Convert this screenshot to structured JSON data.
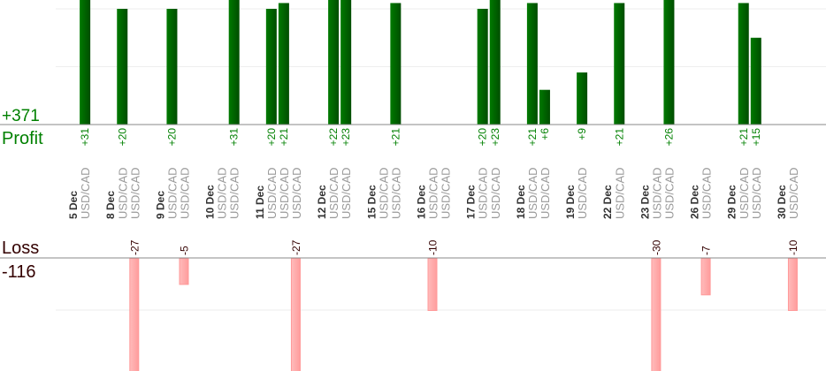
{
  "chart_data": {
    "type": "bar",
    "profit_panel": {
      "label": "Profit",
      "total": "+371",
      "color": "#006600",
      "label_color": "#008000"
    },
    "loss_panel": {
      "label": "Loss",
      "total": "-116",
      "color": "#ffaaaa",
      "label_color": "#330000"
    },
    "symbol": "USD/CAD",
    "days": [
      {
        "date": "5 Dec",
        "trades": [
          31
        ]
      },
      {
        "date": "8 Dec",
        "trades": [
          20,
          -27
        ]
      },
      {
        "date": "9 Dec",
        "trades": [
          20,
          -5
        ]
      },
      {
        "date": "10 Dec",
        "trades": [
          0,
          31
        ]
      },
      {
        "date": "11 Dec",
        "trades": [
          20,
          21,
          -27
        ]
      },
      {
        "date": "12 Dec",
        "trades": [
          22,
          23
        ]
      },
      {
        "date": "15 Dec",
        "trades": [
          0,
          21
        ]
      },
      {
        "date": "16 Dec",
        "trades": [
          -10,
          0
        ]
      },
      {
        "date": "17 Dec",
        "trades": [
          20,
          23
        ]
      },
      {
        "date": "18 Dec",
        "trades": [
          21,
          6
        ]
      },
      {
        "date": "19 Dec",
        "trades": [
          9
        ]
      },
      {
        "date": "22 Dec",
        "trades": [
          21
        ]
      },
      {
        "date": "23 Dec",
        "trades": [
          -30,
          26
        ]
      },
      {
        "date": "26 Dec",
        "trades": [
          -7
        ]
      },
      {
        "date": "29 Dec",
        "trades": [
          21,
          15
        ]
      },
      {
        "date": "30 Dec",
        "trades": [
          -10
        ]
      }
    ],
    "profit_gridlines": [
      10,
      20
    ],
    "loss_gridlines": [
      -10
    ],
    "grid": true
  }
}
